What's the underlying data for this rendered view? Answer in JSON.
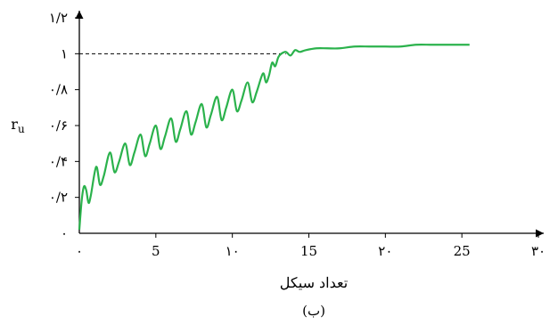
{
  "chart_data": {
    "type": "line",
    "title": "",
    "xlabel": "تعداد سیکل",
    "ylabel": "r",
    "ylabel_sub": "u",
    "caption": "(ب)",
    "xlim": [
      0,
      30
    ],
    "ylim": [
      0,
      1.2
    ],
    "x_ticks": [
      {
        "value": 0,
        "label": "۰"
      },
      {
        "value": 5,
        "label": "5"
      },
      {
        "value": 10,
        "label": "۱۰"
      },
      {
        "value": 15,
        "label": "15"
      },
      {
        "value": 20,
        "label": "۲۰"
      },
      {
        "value": 25,
        "label": "25"
      },
      {
        "value": 30,
        "label": "۳۰"
      }
    ],
    "y_ticks": [
      {
        "value": 0,
        "label": "۰"
      },
      {
        "value": 0.2,
        "label": "۰/۲"
      },
      {
        "value": 0.4,
        "label": "۰/۴"
      },
      {
        "value": 0.6,
        "label": "۰/۶"
      },
      {
        "value": 0.8,
        "label": "۰/۸"
      },
      {
        "value": 1.0,
        "label": "۱"
      },
      {
        "value": 1.2,
        "label": "۱/۲"
      }
    ],
    "reference_line": {
      "y": 1.0,
      "x_end": 13.5,
      "style": "dashed"
    },
    "grid": false,
    "series": [
      {
        "color": "#2bb24c",
        "points": [
          [
            0,
            0.02
          ],
          [
            0.15,
            0.18
          ],
          [
            0.3,
            0.26
          ],
          [
            0.45,
            0.24
          ],
          [
            0.6,
            0.17
          ],
          [
            0.75,
            0.21
          ],
          [
            1.1,
            0.37
          ],
          [
            1.35,
            0.27
          ],
          [
            1.6,
            0.32
          ],
          [
            2.0,
            0.45
          ],
          [
            2.3,
            0.34
          ],
          [
            2.6,
            0.4
          ],
          [
            3.0,
            0.5
          ],
          [
            3.3,
            0.38
          ],
          [
            3.6,
            0.45
          ],
          [
            4.0,
            0.55
          ],
          [
            4.3,
            0.43
          ],
          [
            4.6,
            0.5
          ],
          [
            5.0,
            0.6
          ],
          [
            5.3,
            0.47
          ],
          [
            5.6,
            0.54
          ],
          [
            6.0,
            0.64
          ],
          [
            6.3,
            0.51
          ],
          [
            6.6,
            0.58
          ],
          [
            7.0,
            0.68
          ],
          [
            7.3,
            0.55
          ],
          [
            7.6,
            0.62
          ],
          [
            8.0,
            0.72
          ],
          [
            8.3,
            0.59
          ],
          [
            8.6,
            0.66
          ],
          [
            9.0,
            0.76
          ],
          [
            9.3,
            0.63
          ],
          [
            9.6,
            0.7
          ],
          [
            10.0,
            0.8
          ],
          [
            10.3,
            0.68
          ],
          [
            10.6,
            0.74
          ],
          [
            11.0,
            0.84
          ],
          [
            11.3,
            0.73
          ],
          [
            11.6,
            0.79
          ],
          [
            12.0,
            0.89
          ],
          [
            12.2,
            0.84
          ],
          [
            12.4,
            0.88
          ],
          [
            12.6,
            0.95
          ],
          [
            12.8,
            0.93
          ],
          [
            13.0,
            0.98
          ],
          [
            13.2,
            1.0
          ],
          [
            13.5,
            1.01
          ],
          [
            13.8,
            0.99
          ],
          [
            14.1,
            1.02
          ],
          [
            14.4,
            1.01
          ],
          [
            14.8,
            1.02
          ],
          [
            15.5,
            1.03
          ],
          [
            16.2,
            1.03
          ],
          [
            17.0,
            1.03
          ],
          [
            18.0,
            1.04
          ],
          [
            19.0,
            1.04
          ],
          [
            20.0,
            1.04
          ],
          [
            21.0,
            1.04
          ],
          [
            22.0,
            1.05
          ],
          [
            23.0,
            1.05
          ],
          [
            24.0,
            1.05
          ],
          [
            24.8,
            1.05
          ],
          [
            25.5,
            1.05
          ]
        ]
      }
    ]
  }
}
